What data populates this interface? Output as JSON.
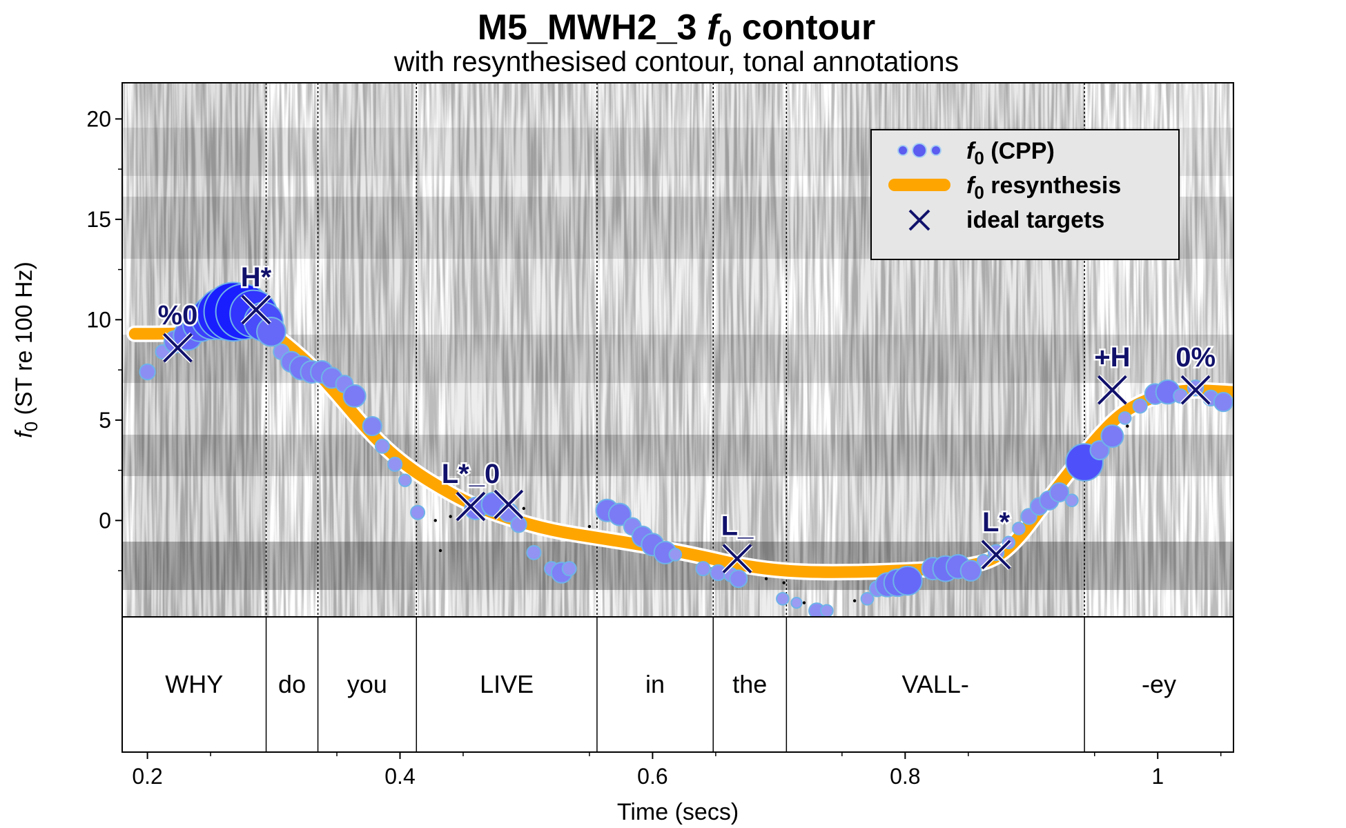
{
  "chart_data": {
    "type": "scatter",
    "title": "M5_MWH2_3",
    "title_f": "f",
    "title_sub": "0",
    "title_tail": " contour",
    "subtitle": "with resynthesised contour, tonal annotations",
    "xlabel": "Time (secs)",
    "ylabel_f": "f",
    "ylabel_sub": "0",
    "ylabel_tail": " (ST re 100 Hz)",
    "xlim": [
      0.18,
      1.06
    ],
    "ylim": [
      -4.8,
      21.8
    ],
    "xticks": [
      0.2,
      0.4,
      0.6,
      0.8,
      1
    ],
    "xtick_labels": [
      "0.2",
      "0.4",
      "0.6",
      "0.8",
      "1"
    ],
    "yticks": [
      0,
      5,
      10,
      15,
      20
    ],
    "ytick_labels": [
      "0",
      "5",
      "10",
      "15",
      "20"
    ],
    "legend": {
      "position": "top-right",
      "items": [
        {
          "f": "f",
          "sub": "0",
          "text": " (CPP)"
        },
        {
          "f": "f",
          "sub": "0",
          "text": " resynthesis"
        },
        {
          "f": "",
          "sub": "",
          "text": "ideal targets"
        }
      ]
    },
    "words": [
      {
        "label": "WHY",
        "start": 0.18,
        "end": 0.294
      },
      {
        "label": "do",
        "start": 0.294,
        "end": 0.335
      },
      {
        "label": "you",
        "start": 0.335,
        "end": 0.413
      },
      {
        "label": "LIVE",
        "start": 0.413,
        "end": 0.556
      },
      {
        "label": "in",
        "start": 0.556,
        "end": 0.648
      },
      {
        "label": "the",
        "start": 0.648,
        "end": 0.706
      },
      {
        "label": "VALL-",
        "start": 0.706,
        "end": 0.942
      },
      {
        "label": "-ey",
        "start": 0.942,
        "end": 1.06
      }
    ],
    "targets": [
      {
        "label": "%0",
        "x": 0.224,
        "y": 8.6
      },
      {
        "label": "H*",
        "x": 0.286,
        "y": 10.5
      },
      {
        "label": "L*_0",
        "x": 0.456,
        "y": 0.7
      },
      {
        "label": "",
        "x": 0.486,
        "y": 0.8
      },
      {
        "label": "L_",
        "x": 0.667,
        "y": -1.9
      },
      {
        "label": "L*",
        "x": 0.872,
        "y": -1.7
      },
      {
        "label": "+H",
        "x": 0.964,
        "y": 6.5
      },
      {
        "label": "0%",
        "x": 1.03,
        "y": 6.5
      }
    ],
    "resynthesis": [
      [
        0.19,
        9.3
      ],
      [
        0.22,
        9.3
      ],
      [
        0.25,
        9.4
      ],
      [
        0.28,
        9.6
      ],
      [
        0.295,
        9.5
      ],
      [
        0.31,
        8.8
      ],
      [
        0.33,
        7.7
      ],
      [
        0.35,
        6.3
      ],
      [
        0.37,
        4.8
      ],
      [
        0.39,
        3.5
      ],
      [
        0.41,
        2.5
      ],
      [
        0.43,
        1.7
      ],
      [
        0.456,
        0.8
      ],
      [
        0.486,
        0.1
      ],
      [
        0.52,
        -0.5
      ],
      [
        0.56,
        -0.9
      ],
      [
        0.6,
        -1.3
      ],
      [
        0.64,
        -1.8
      ],
      [
        0.667,
        -2.2
      ],
      [
        0.7,
        -2.5
      ],
      [
        0.74,
        -2.6
      ],
      [
        0.8,
        -2.5
      ],
      [
        0.85,
        -2.3
      ],
      [
        0.872,
        -1.9
      ],
      [
        0.89,
        -0.9
      ],
      [
        0.91,
        0.8
      ],
      [
        0.93,
        2.4
      ],
      [
        0.95,
        4.0
      ],
      [
        0.97,
        5.3
      ],
      [
        0.99,
        6.0
      ],
      [
        1.01,
        6.4
      ],
      [
        1.03,
        6.5
      ],
      [
        1.06,
        6.4
      ]
    ],
    "f0_points": [
      {
        "x": 0.2,
        "y": 7.4,
        "s": 0.6
      },
      {
        "x": 0.212,
        "y": 8.4,
        "s": 0.5
      },
      {
        "x": 0.222,
        "y": 8.9,
        "s": 1.0
      },
      {
        "x": 0.232,
        "y": 9.2,
        "s": 1.4
      },
      {
        "x": 0.242,
        "y": 9.8,
        "s": 1.8
      },
      {
        "x": 0.252,
        "y": 10.1,
        "s": 2.3
      },
      {
        "x": 0.26,
        "y": 10.3,
        "s": 2.8
      },
      {
        "x": 0.268,
        "y": 10.4,
        "s": 3.2
      },
      {
        "x": 0.276,
        "y": 10.4,
        "s": 3.0
      },
      {
        "x": 0.284,
        "y": 10.3,
        "s": 2.5
      },
      {
        "x": 0.292,
        "y": 9.9,
        "s": 2.0
      },
      {
        "x": 0.298,
        "y": 9.4,
        "s": 1.4
      },
      {
        "x": 0.306,
        "y": 8.4,
        "s": 0.6
      },
      {
        "x": 0.314,
        "y": 7.9,
        "s": 0.9
      },
      {
        "x": 0.322,
        "y": 7.6,
        "s": 1.1
      },
      {
        "x": 0.33,
        "y": 7.4,
        "s": 1.0
      },
      {
        "x": 0.338,
        "y": 7.4,
        "s": 1.0
      },
      {
        "x": 0.346,
        "y": 7.1,
        "s": 0.9
      },
      {
        "x": 0.356,
        "y": 6.8,
        "s": 0.7
      },
      {
        "x": 0.364,
        "y": 6.2,
        "s": 1.0
      },
      {
        "x": 0.378,
        "y": 4.7,
        "s": 0.8
      },
      {
        "x": 0.386,
        "y": 3.7,
        "s": 0.5
      },
      {
        "x": 0.396,
        "y": 2.8,
        "s": 0.5
      },
      {
        "x": 0.404,
        "y": 2.0,
        "s": 0.4
      },
      {
        "x": 0.414,
        "y": 0.4,
        "s": 0.5
      },
      {
        "x": 0.46,
        "y": 0.6,
        "s": 1.0
      },
      {
        "x": 0.474,
        "y": 0.8,
        "s": 1.1
      },
      {
        "x": 0.486,
        "y": 0.4,
        "s": 0.8
      },
      {
        "x": 0.494,
        "y": -0.2,
        "s": 0.6
      },
      {
        "x": 0.506,
        "y": -1.6,
        "s": 0.5
      },
      {
        "x": 0.52,
        "y": -2.4,
        "s": 0.5
      },
      {
        "x": 0.528,
        "y": -2.6,
        "s": 0.9
      },
      {
        "x": 0.534,
        "y": -2.4,
        "s": 0.5
      },
      {
        "x": 0.564,
        "y": 0.5,
        "s": 1.0
      },
      {
        "x": 0.574,
        "y": 0.3,
        "s": 1.0
      },
      {
        "x": 0.584,
        "y": -0.3,
        "s": 0.7
      },
      {
        "x": 0.592,
        "y": -0.8,
        "s": 0.9
      },
      {
        "x": 0.6,
        "y": -1.2,
        "s": 1.0
      },
      {
        "x": 0.61,
        "y": -1.6,
        "s": 1.0
      },
      {
        "x": 0.618,
        "y": -1.7,
        "s": 0.4
      },
      {
        "x": 0.64,
        "y": -2.4,
        "s": 0.5
      },
      {
        "x": 0.652,
        "y": -2.6,
        "s": 0.6
      },
      {
        "x": 0.662,
        "y": -2.7,
        "s": 0.5
      },
      {
        "x": 0.668,
        "y": -2.9,
        "s": 0.7
      },
      {
        "x": 0.703,
        "y": -3.9,
        "s": 0.4
      },
      {
        "x": 0.714,
        "y": -4.1,
        "s": 0.3
      },
      {
        "x": 0.73,
        "y": -4.5,
        "s": 0.6
      },
      {
        "x": 0.738,
        "y": -4.5,
        "s": 0.4
      },
      {
        "x": 0.77,
        "y": -3.9,
        "s": 0.4
      },
      {
        "x": 0.778,
        "y": -3.4,
        "s": 0.6
      },
      {
        "x": 0.786,
        "y": -3.2,
        "s": 1.1
      },
      {
        "x": 0.794,
        "y": -3.1,
        "s": 1.3
      },
      {
        "x": 0.802,
        "y": -3.0,
        "s": 1.4
      },
      {
        "x": 0.822,
        "y": -2.4,
        "s": 1.0
      },
      {
        "x": 0.832,
        "y": -2.4,
        "s": 1.2
      },
      {
        "x": 0.842,
        "y": -2.3,
        "s": 1.1
      },
      {
        "x": 0.852,
        "y": -2.5,
        "s": 0.9
      },
      {
        "x": 0.862,
        "y": -2.0,
        "s": 0.4
      },
      {
        "x": 0.872,
        "y": -1.6,
        "s": 0.6
      },
      {
        "x": 0.882,
        "y": -1.1,
        "s": 0.4
      },
      {
        "x": 0.89,
        "y": -0.4,
        "s": 0.4
      },
      {
        "x": 0.898,
        "y": 0.2,
        "s": 0.6
      },
      {
        "x": 0.906,
        "y": 0.7,
        "s": 0.7
      },
      {
        "x": 0.914,
        "y": 1.0,
        "s": 0.8
      },
      {
        "x": 0.922,
        "y": 1.4,
        "s": 0.8
      },
      {
        "x": 0.932,
        "y": 1.0,
        "s": 0.4
      },
      {
        "x": 0.942,
        "y": 2.9,
        "s": 1.9
      },
      {
        "x": 0.954,
        "y": 3.5,
        "s": 0.8
      },
      {
        "x": 0.964,
        "y": 4.2,
        "s": 1.0
      },
      {
        "x": 0.974,
        "y": 5.1,
        "s": 0.4
      },
      {
        "x": 0.986,
        "y": 5.7,
        "s": 0.5
      },
      {
        "x": 0.998,
        "y": 6.3,
        "s": 0.9
      },
      {
        "x": 1.008,
        "y": 6.4,
        "s": 1.1
      },
      {
        "x": 1.018,
        "y": 6.2,
        "s": 0.5
      },
      {
        "x": 1.03,
        "y": 6.6,
        "s": 0.6
      },
      {
        "x": 1.042,
        "y": 6.1,
        "s": 0.6
      },
      {
        "x": 1.052,
        "y": 5.9,
        "s": 0.8
      }
    ],
    "dotted_points": [
      [
        0.428,
        0.0
      ],
      [
        0.432,
        -1.5
      ],
      [
        0.44,
        0.2
      ],
      [
        0.498,
        0.6
      ],
      [
        0.55,
        -0.3
      ],
      [
        0.69,
        -2.9
      ],
      [
        0.704,
        -3.1
      ],
      [
        0.72,
        -4.1
      ],
      [
        0.76,
        -4.0
      ],
      [
        0.78,
        -3.7
      ],
      [
        0.976,
        4.7
      ]
    ]
  }
}
